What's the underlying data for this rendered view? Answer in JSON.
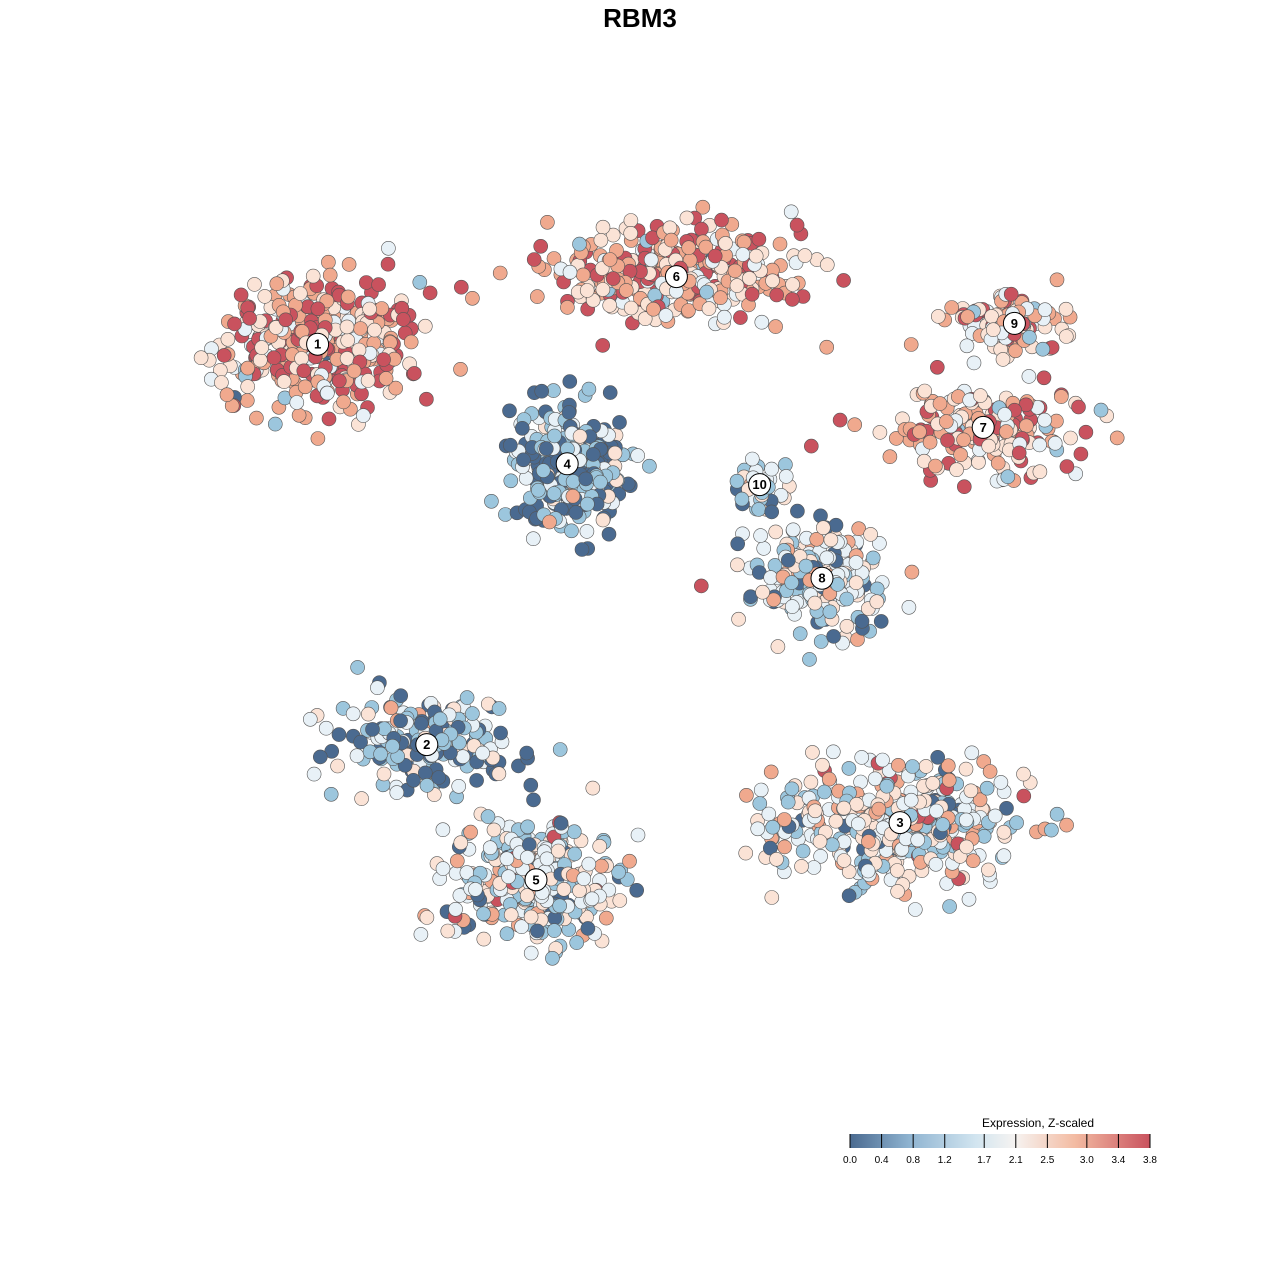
{
  "chart_data": {
    "type": "scatter",
    "title": "RBM3",
    "xlabel": "",
    "ylabel": "",
    "grid": false,
    "legend": {
      "title": "Expression, Z-scaled",
      "placement": "bottom-right",
      "ticks": [
        "0.0",
        "0.4",
        "0.8",
        "1.2",
        "1.7",
        "2.1",
        "2.5",
        "3.0",
        "3.4",
        "3.8"
      ],
      "range": [
        0.0,
        3.8
      ]
    },
    "colors": [
      "#4a6a90",
      "#9cc6dd",
      "#e8f1f7",
      "#fbe3d6",
      "#f0a98e",
      "#c9525e"
    ],
    "clusters": [
      {
        "label": "1",
        "x": -62,
        "y": 54,
        "mean_expression": 2.9
      },
      {
        "label": "2",
        "x": -41,
        "y": -23,
        "mean_expression": 0.7
      },
      {
        "label": "3",
        "x": 50,
        "y": -38,
        "mean_expression": 1.9
      },
      {
        "label": "4",
        "x": -14,
        "y": 31,
        "mean_expression": 0.6
      },
      {
        "label": "5",
        "x": -20,
        "y": -49,
        "mean_expression": 1.5
      },
      {
        "label": "6",
        "x": 7,
        "y": 67,
        "mean_expression": 2.8
      },
      {
        "label": "7",
        "x": 66,
        "y": 38,
        "mean_expression": 2.7
      },
      {
        "label": "8",
        "x": 35,
        "y": 9,
        "mean_expression": 1.4
      },
      {
        "label": "9",
        "x": 72,
        "y": 58,
        "mean_expression": 2.4
      },
      {
        "label": "10",
        "x": 23,
        "y": 27,
        "mean_expression": 1.0
      }
    ]
  }
}
